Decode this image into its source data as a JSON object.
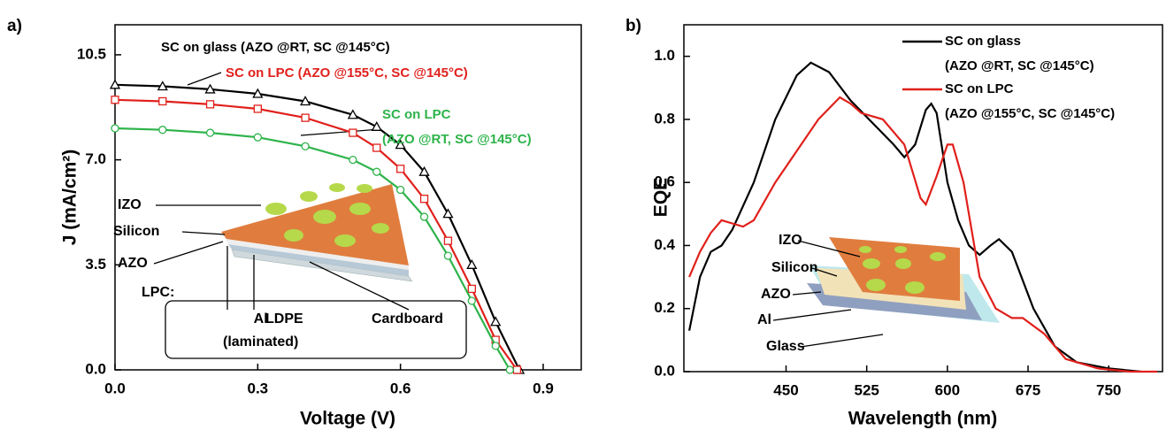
{
  "chart_data": [
    {
      "type": "line",
      "panel_label": "a)",
      "xlabel": "Voltage (V)",
      "ylabel": "J (mA/cm²)",
      "xlim": [
        0,
        0.98
      ],
      "ylim": [
        0,
        11.5
      ],
      "xticks": [
        {
          "value": 0,
          "label": "0.0"
        },
        0.3,
        0.6,
        0.9
      ],
      "yticks": [
        {
          "value": 0,
          "label": "0.0"
        },
        3.5,
        {
          "value": 7,
          "label": "7.0"
        },
        10.5
      ],
      "series": [
        {
          "name": "SC on glass (AZO @RT, SC @145°C)",
          "color": "#000000",
          "marker": "triangle",
          "x": [
            0,
            0.1,
            0.2,
            0.3,
            0.4,
            0.5,
            0.55,
            0.6,
            0.65,
            0.7,
            0.75,
            0.8,
            0.85
          ],
          "values": [
            9.5,
            9.45,
            9.35,
            9.2,
            8.95,
            8.5,
            8.1,
            7.5,
            6.6,
            5.2,
            3.5,
            1.6,
            0
          ]
        },
        {
          "name": "SC on LPC (AZO @155°C, SC @145°C)",
          "color": "#e0201b",
          "marker": "square",
          "x": [
            0,
            0.1,
            0.2,
            0.3,
            0.4,
            0.5,
            0.55,
            0.6,
            0.65,
            0.7,
            0.75,
            0.8,
            0.845
          ],
          "values": [
            9.0,
            8.95,
            8.85,
            8.7,
            8.4,
            7.9,
            7.4,
            6.7,
            5.7,
            4.3,
            2.7,
            1.0,
            0
          ]
        },
        {
          "name": "SC on LPC\n(AZO @RT, SC @145°C)",
          "color": "#2db34a",
          "marker": "circle",
          "x": [
            0,
            0.1,
            0.2,
            0.3,
            0.4,
            0.5,
            0.55,
            0.6,
            0.65,
            0.7,
            0.75,
            0.8,
            0.83
          ],
          "values": [
            8.05,
            8.0,
            7.9,
            7.75,
            7.45,
            7.0,
            6.6,
            6.0,
            5.1,
            3.8,
            2.3,
            0.8,
            0
          ]
        }
      ],
      "annotations": [
        "IZO",
        "Silicon",
        "AZO",
        "LPC:",
        "Al\n(laminated)",
        "LDPE",
        "Cardboard"
      ]
    },
    {
      "type": "line",
      "panel_label": "b)",
      "xlabel": "Wavelength (nm)",
      "ylabel": "EQE",
      "xlim": [
        355,
        800
      ],
      "ylim": [
        0,
        1.1
      ],
      "xticks": [
        450,
        525,
        600,
        675,
        750
      ],
      "yticks": [
        {
          "value": 0,
          "label": "0.0"
        },
        0.2,
        0.4,
        0.6,
        0.8,
        {
          "value": 1,
          "label": "1.0"
        }
      ],
      "series": [
        {
          "name": "SC on glass\n(AZO @RT, SC @145°C)",
          "color": "#000000",
          "x": [
            360,
            370,
            380,
            390,
            400,
            420,
            440,
            460,
            473,
            490,
            510,
            530,
            550,
            560,
            570,
            580,
            585,
            590,
            600,
            610,
            620,
            630,
            640,
            648,
            660,
            680,
            700,
            720,
            750,
            780
          ],
          "values": [
            0.13,
            0.3,
            0.38,
            0.4,
            0.45,
            0.6,
            0.8,
            0.94,
            0.98,
            0.95,
            0.86,
            0.79,
            0.72,
            0.68,
            0.72,
            0.83,
            0.85,
            0.82,
            0.6,
            0.48,
            0.4,
            0.37,
            0.4,
            0.42,
            0.38,
            0.2,
            0.08,
            0.03,
            0.01,
            0
          ]
        },
        {
          "name": "SC on LPC\n(AZO @155°C, SC @145°C)",
          "color": "#e0201b",
          "x": [
            360,
            370,
            380,
            390,
            400,
            410,
            420,
            440,
            460,
            480,
            500,
            510,
            520,
            540,
            560,
            575,
            580,
            590,
            600,
            605,
            615,
            630,
            645,
            660,
            670,
            690,
            710,
            740,
            770,
            795
          ],
          "values": [
            0.3,
            0.38,
            0.44,
            0.48,
            0.47,
            0.46,
            0.48,
            0.6,
            0.7,
            0.8,
            0.87,
            0.85,
            0.82,
            0.8,
            0.72,
            0.55,
            0.53,
            0.62,
            0.72,
            0.72,
            0.6,
            0.3,
            0.2,
            0.17,
            0.17,
            0.12,
            0.04,
            0.01,
            0,
            0
          ]
        }
      ],
      "annotations": [
        "IZO",
        "Silicon",
        "AZO",
        "Al",
        "Glass"
      ]
    }
  ]
}
